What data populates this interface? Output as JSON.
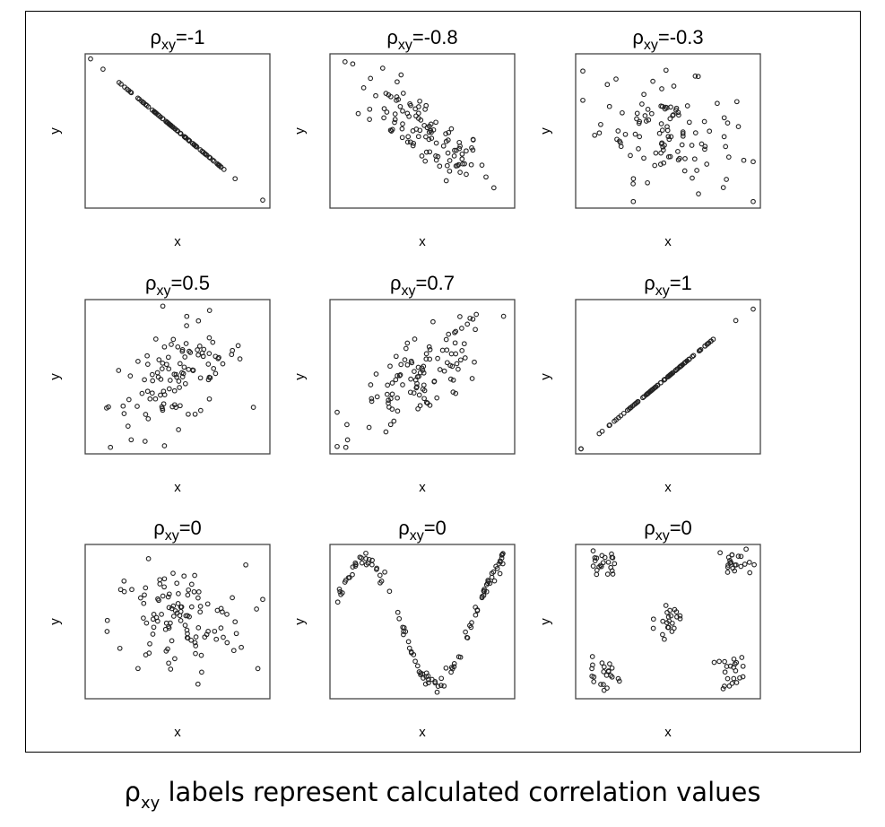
{
  "caption": {
    "symbol": "ρ",
    "subscript": "xy",
    "text": " labels represent calculated correlation values"
  },
  "chart_data": [
    {
      "type": "scatter",
      "title_symbol": "ρ",
      "title_subscript": "xy",
      "title_value": "=-1",
      "xlabel": "x",
      "ylabel": "y",
      "pattern": "perfect-negative-line",
      "correlation": -1
    },
    {
      "type": "scatter",
      "title_symbol": "ρ",
      "title_subscript": "xy",
      "title_value": "=-0.8",
      "xlabel": "x",
      "ylabel": "y",
      "pattern": "strong-negative",
      "correlation": -0.8
    },
    {
      "type": "scatter",
      "title_symbol": "ρ",
      "title_subscript": "xy",
      "title_value": "=-0.3",
      "xlabel": "x",
      "ylabel": "y",
      "pattern": "weak-negative",
      "correlation": -0.3
    },
    {
      "type": "scatter",
      "title_symbol": "ρ",
      "title_subscript": "xy",
      "title_value": "=0.5",
      "xlabel": "x",
      "ylabel": "y",
      "pattern": "moderate-positive",
      "correlation": 0.5
    },
    {
      "type": "scatter",
      "title_symbol": "ρ",
      "title_subscript": "xy",
      "title_value": "=0.7",
      "xlabel": "x",
      "ylabel": "y",
      "pattern": "strong-positive",
      "correlation": 0.7
    },
    {
      "type": "scatter",
      "title_symbol": "ρ",
      "title_subscript": "xy",
      "title_value": "=1",
      "xlabel": "x",
      "ylabel": "y",
      "pattern": "perfect-positive-line",
      "correlation": 1
    },
    {
      "type": "scatter",
      "title_symbol": "ρ",
      "title_subscript": "xy",
      "title_value": "=0",
      "xlabel": "x",
      "ylabel": "y",
      "pattern": "random-cloud",
      "correlation": 0
    },
    {
      "type": "scatter",
      "title_symbol": "ρ",
      "title_subscript": "xy",
      "title_value": "=0",
      "xlabel": "x",
      "ylabel": "y",
      "pattern": "sine-wave",
      "correlation": 0
    },
    {
      "type": "scatter",
      "title_symbol": "ρ",
      "title_subscript": "xy",
      "title_value": "=0",
      "xlabel": "x",
      "ylabel": "y",
      "pattern": "five-clusters",
      "correlation": 0
    }
  ]
}
